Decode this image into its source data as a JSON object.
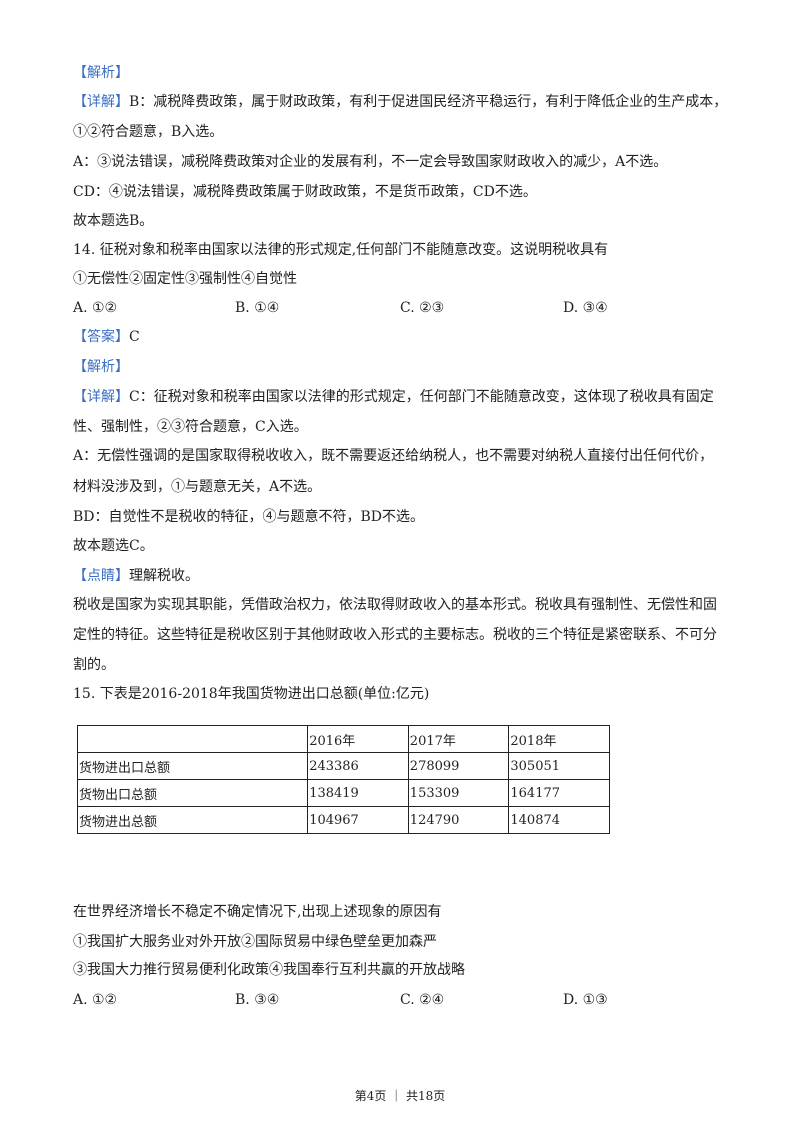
{
  "lines_top": [
    {
      "label": "【解析】",
      "text": ""
    },
    {
      "label": "【详解】",
      "text": "B：减税降费政策，属于财政政策，有利于促进国民经济平稳运行，有利于降低企业的生产成本，"
    },
    {
      "label": "",
      "text": "①②符合题意，B入选。"
    },
    {
      "label": "",
      "text": "A：③说法错误，减税降费政策对企业的发展有利，不一定会导致国家财政收入的减少，A不选。"
    },
    {
      "label": "",
      "text": "CD：④说法错误，减税降费政策属于财政政策，不是货币政策，CD不选。"
    },
    {
      "label": "",
      "text": "故本题选B。"
    },
    {
      "label": "",
      "text": "14. 征税对象和税率由国家以法律的形式规定,任何部门不能随意改变。这说明税收具有"
    },
    {
      "label": "",
      "text": "①无偿性②固定性③强制性④自觉性"
    }
  ],
  "q14_options": [
    "A. ①②",
    "B. ①④",
    "C. ②③",
    "D. ③④"
  ],
  "lines_mid": [
    {
      "label": "【答案】",
      "text": "C"
    },
    {
      "label": "【解析】",
      "text": ""
    },
    {
      "label": "【详解】",
      "text": "C：征税对象和税率由国家以法律的形式规定，任何部门不能随意改变，这体现了税收具有固定"
    },
    {
      "label": "",
      "text": "性、强制性，②③符合题意，C入选。"
    },
    {
      "label": "",
      "text": "A：无偿性强调的是国家取得税收收入，既不需要返还给纳税人，也不需要对纳税人直接付出任何代价，"
    },
    {
      "label": "",
      "text": "材料没涉及到，①与题意无关，A不选。"
    },
    {
      "label": "",
      "text": "BD：自觉性不是税收的特征，④与题意不符，BD不选。"
    },
    {
      "label": "",
      "text": "故本题选C。"
    },
    {
      "label": "【点睛】",
      "text": "理解税收。"
    },
    {
      "label": "",
      "text": "税收是国家为实现其职能，凭借政治权力，依法取得财政收入的基本形式。税收具有强制性、无偿性和固"
    },
    {
      "label": "",
      "text": "定性的特征。这些特征是税收区别于其他财政收入形式的主要标志。税收的三个特征是紧密联系、不可分"
    },
    {
      "label": "",
      "text": "割的。"
    },
    {
      "label": "",
      "text": "15. 下表是2016-2018年我国货物进出口总额(单位:亿元)"
    }
  ],
  "table": {
    "headers": [
      "",
      "2016年",
      "2017年",
      "2018年"
    ],
    "rows": [
      [
        "货物进出口总额",
        "243386",
        "278099",
        "305051"
      ],
      [
        "货物出口总额",
        "138419",
        "153309",
        "164177"
      ],
      [
        "货物进出总额",
        "104967",
        "124790",
        "140874"
      ]
    ]
  },
  "lines_bottom": [
    "在世界经济增长不稳定不确定情况下,出现上述现象的原因有",
    "①我国扩大服务业对外开放②国际贸易中绿色壁垒更加森严",
    "③我国大力推行贸易便利化政策④我国奉行互利共赢的开放战略"
  ],
  "q15_options": [
    "A. ①②",
    "B. ③④",
    "C. ②④",
    "D. ①③"
  ],
  "footer": "第4页 ｜ 共18页"
}
